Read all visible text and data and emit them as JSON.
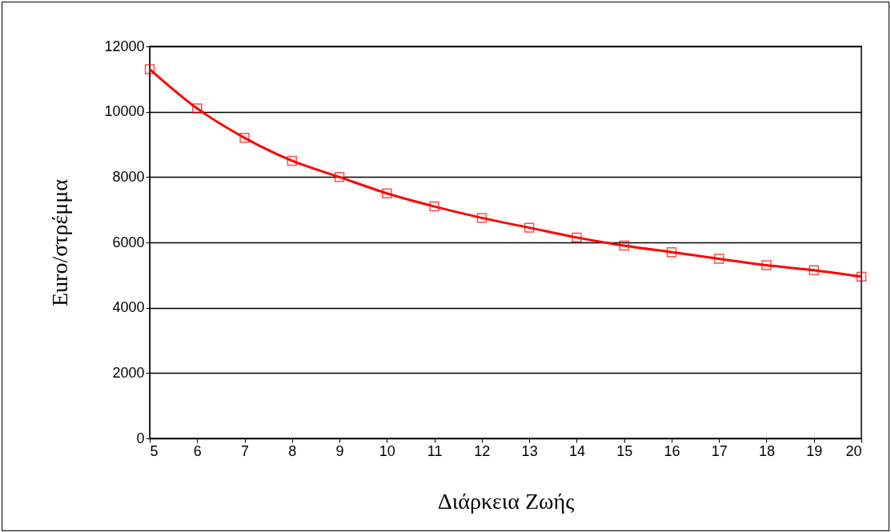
{
  "chart_data": {
    "type": "line",
    "xlabel": "Διάρκεια Ζωής",
    "ylabel": "Euro/στρέμμα",
    "x": [
      5,
      6,
      7,
      8,
      9,
      10,
      11,
      12,
      13,
      14,
      15,
      16,
      17,
      18,
      19,
      20
    ],
    "series": [
      {
        "color": "#ff0000",
        "values": [
          11300,
          10100,
          9200,
          8500,
          8000,
          7500,
          7100,
          6750,
          6450,
          6150,
          5900,
          5700,
          5500,
          5300,
          5150,
          4950
        ]
      }
    ],
    "xlim": [
      5,
      20
    ],
    "xticks": [
      5,
      6,
      7,
      8,
      9,
      10,
      11,
      12,
      13,
      14,
      15,
      16,
      17,
      18,
      19,
      20
    ],
    "ylim": [
      0,
      12000
    ],
    "yticks": [
      0,
      2000,
      4000,
      6000,
      8000,
      10000,
      12000
    ],
    "grid": "y",
    "marker": "square",
    "line_style": "solid"
  }
}
